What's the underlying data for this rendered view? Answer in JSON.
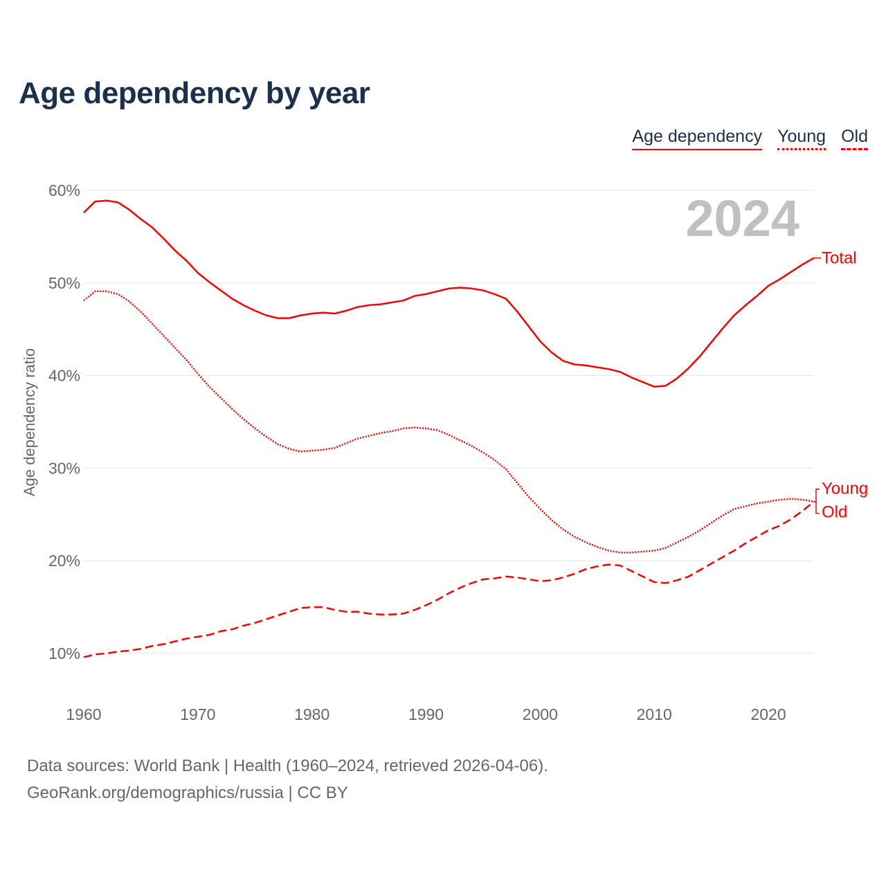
{
  "chart_data": {
    "type": "line",
    "title": "Age dependency by year",
    "xlabel": "",
    "ylabel": "Age dependency ratio",
    "xlim": [
      1960,
      2024
    ],
    "ylim": [
      10,
      60
    ],
    "grid": true,
    "yticks": [
      10,
      20,
      30,
      40,
      50,
      60
    ],
    "ytick_labels": [
      "10%",
      "20%",
      "30%",
      "40%",
      "50%",
      "60%"
    ],
    "xticks": [
      1960,
      1970,
      1980,
      1990,
      2000,
      2010,
      2020
    ],
    "xtick_labels": [
      "1960",
      "1970",
      "1980",
      "1990",
      "2000",
      "2010",
      "2020"
    ],
    "legend": [
      "Age dependency",
      "Young",
      "Old"
    ],
    "legend_placement": "top-right",
    "year_annotation": "2024",
    "x_start": 1960,
    "series": [
      {
        "name": "Total",
        "label": "Total",
        "style": "solid",
        "color": "#ff0000",
        "values": [
          57.6,
          58.8,
          58.9,
          58.7,
          57.9,
          56.9,
          56.0,
          54.8,
          53.5,
          52.4,
          51.1,
          50.1,
          49.2,
          48.3,
          47.6,
          47.0,
          46.5,
          46.2,
          46.2,
          46.5,
          46.7,
          46.8,
          46.7,
          47.0,
          47.4,
          47.6,
          47.7,
          47.9,
          48.1,
          48.6,
          48.8,
          49.1,
          49.4,
          49.5,
          49.4,
          49.2,
          48.8,
          48.3,
          46.9,
          45.3,
          43.7,
          42.5,
          41.6,
          41.2,
          41.1,
          40.9,
          40.7,
          40.4,
          39.8,
          39.3,
          38.8,
          38.9,
          39.7,
          40.8,
          42.1,
          43.6,
          45.1,
          46.5,
          47.6,
          48.6,
          49.7,
          50.4,
          51.2,
          52.0,
          52.7
        ]
      },
      {
        "name": "Young",
        "label": "Young",
        "style": "dotted",
        "color": "#ff0000",
        "values": [
          48.1,
          49.1,
          49.1,
          48.8,
          48.0,
          46.9,
          45.6,
          44.3,
          43.0,
          41.7,
          40.2,
          38.8,
          37.6,
          36.4,
          35.3,
          34.3,
          33.4,
          32.6,
          32.1,
          31.8,
          31.9,
          32.0,
          32.2,
          32.7,
          33.2,
          33.5,
          33.8,
          34.0,
          34.3,
          34.4,
          34.3,
          34.1,
          33.6,
          33.0,
          32.4,
          31.7,
          30.9,
          29.9,
          28.4,
          26.9,
          25.6,
          24.4,
          23.4,
          22.6,
          22.0,
          21.5,
          21.1,
          20.9,
          20.9,
          21.0,
          21.1,
          21.4,
          22.0,
          22.6,
          23.3,
          24.1,
          24.9,
          25.6,
          25.9,
          26.2,
          26.4,
          26.6,
          26.7,
          26.6,
          26.4
        ]
      },
      {
        "name": "Old",
        "label": "Old",
        "style": "dashed",
        "color": "#ff0000",
        "values": [
          9.6,
          9.9,
          10.0,
          10.2,
          10.3,
          10.5,
          10.8,
          11.0,
          11.3,
          11.6,
          11.8,
          12.0,
          12.4,
          12.6,
          13.0,
          13.3,
          13.7,
          14.1,
          14.5,
          14.9,
          15.0,
          15.0,
          14.7,
          14.5,
          14.5,
          14.3,
          14.2,
          14.2,
          14.3,
          14.7,
          15.2,
          15.8,
          16.5,
          17.1,
          17.6,
          18.0,
          18.1,
          18.3,
          18.2,
          18.0,
          17.8,
          17.9,
          18.2,
          18.6,
          19.1,
          19.4,
          19.6,
          19.5,
          18.9,
          18.3,
          17.7,
          17.6,
          17.9,
          18.3,
          19.0,
          19.7,
          20.4,
          21.1,
          21.9,
          22.6,
          23.3,
          23.8,
          24.5,
          25.4,
          26.4
        ]
      }
    ]
  },
  "source": {
    "line1": "Data sources: World Bank | Health (1960–2024, retrieved 2026-04-06).",
    "line2": "GeoRank.org/demographics/russia | CC BY"
  }
}
